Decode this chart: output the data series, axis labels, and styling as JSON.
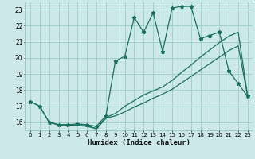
{
  "xlabel": "Humidex (Indice chaleur)",
  "background_color": "#cce8e8",
  "grid_color": "#99cccc",
  "line_color": "#1a7060",
  "xlim": [
    -0.5,
    23.5
  ],
  "ylim": [
    15.5,
    23.5
  ],
  "xticks": [
    0,
    1,
    2,
    3,
    4,
    5,
    6,
    7,
    8,
    9,
    10,
    11,
    12,
    13,
    14,
    15,
    16,
    17,
    18,
    19,
    20,
    21,
    22,
    23
  ],
  "yticks": [
    16,
    17,
    18,
    19,
    20,
    21,
    22,
    23
  ],
  "series1_x": [
    0,
    1,
    2,
    3,
    4,
    5,
    6,
    7,
    8,
    9,
    10,
    11,
    12,
    13,
    14,
    15,
    16,
    17,
    18,
    19,
    20,
    21,
    22,
    23
  ],
  "series1_y": [
    17.3,
    17.0,
    16.0,
    15.85,
    15.85,
    15.9,
    15.85,
    15.75,
    16.4,
    19.8,
    20.1,
    22.5,
    21.6,
    22.8,
    20.4,
    23.1,
    23.2,
    23.2,
    21.2,
    21.4,
    21.6,
    19.2,
    18.4,
    17.6
  ],
  "series2_x": [
    0,
    1,
    2,
    3,
    4,
    5,
    6,
    7,
    8,
    9,
    10,
    11,
    12,
    13,
    14,
    15,
    16,
    17,
    18,
    19,
    20,
    21,
    22,
    23
  ],
  "series2_y": [
    17.3,
    17.0,
    16.0,
    15.85,
    15.85,
    15.8,
    15.8,
    15.6,
    16.3,
    16.55,
    17.0,
    17.35,
    17.7,
    17.95,
    18.2,
    18.6,
    19.1,
    19.55,
    20.05,
    20.5,
    20.95,
    21.35,
    21.6,
    17.6
  ],
  "series3_x": [
    2,
    3,
    4,
    5,
    6,
    7,
    8,
    9,
    10,
    11,
    12,
    13,
    14,
    15,
    16,
    17,
    18,
    19,
    20,
    21,
    22,
    23
  ],
  "series3_y": [
    16.0,
    15.85,
    15.85,
    15.8,
    15.75,
    15.6,
    16.25,
    16.4,
    16.65,
    16.95,
    17.2,
    17.5,
    17.75,
    18.05,
    18.45,
    18.85,
    19.25,
    19.65,
    20.05,
    20.45,
    20.75,
    17.6
  ]
}
